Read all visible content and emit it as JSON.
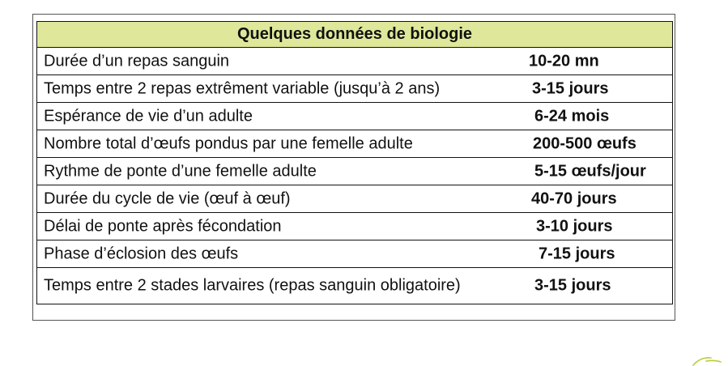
{
  "table": {
    "title": "Quelques données de biologie",
    "header_color": "#dfe89a",
    "rows": [
      {
        "label": "Durée d’un repas sanguin",
        "value": "10-20 mn"
      },
      {
        "label": "Temps entre 2 repas extrêment variable (jusqu’à 2 ans)",
        "value": "3-15 jours"
      },
      {
        "label": "Espérance de vie d’un adulte",
        "value": "6-24 mois"
      },
      {
        "label": "Nombre total d’œufs pondus par une femelle adulte",
        "value": "200-500 œufs"
      },
      {
        "label": "Rythme de ponte d’une femelle adulte",
        "value": "5-15 œufs/jour"
      },
      {
        "label": "Durée du cycle de vie (œuf à œuf)",
        "value": "40-70 jours"
      },
      {
        "label": "Délai de ponte après fécondation",
        "value": "3-10 jours"
      },
      {
        "label": "Phase d’éclosion des œufs",
        "value": "7-15 jours"
      },
      {
        "label": "Temps entre 2 stades larvaires (repas sanguin obligatoire)",
        "value": "3-15 jours"
      }
    ]
  },
  "decoration": {
    "leaf_color": "#b9cc3a"
  }
}
